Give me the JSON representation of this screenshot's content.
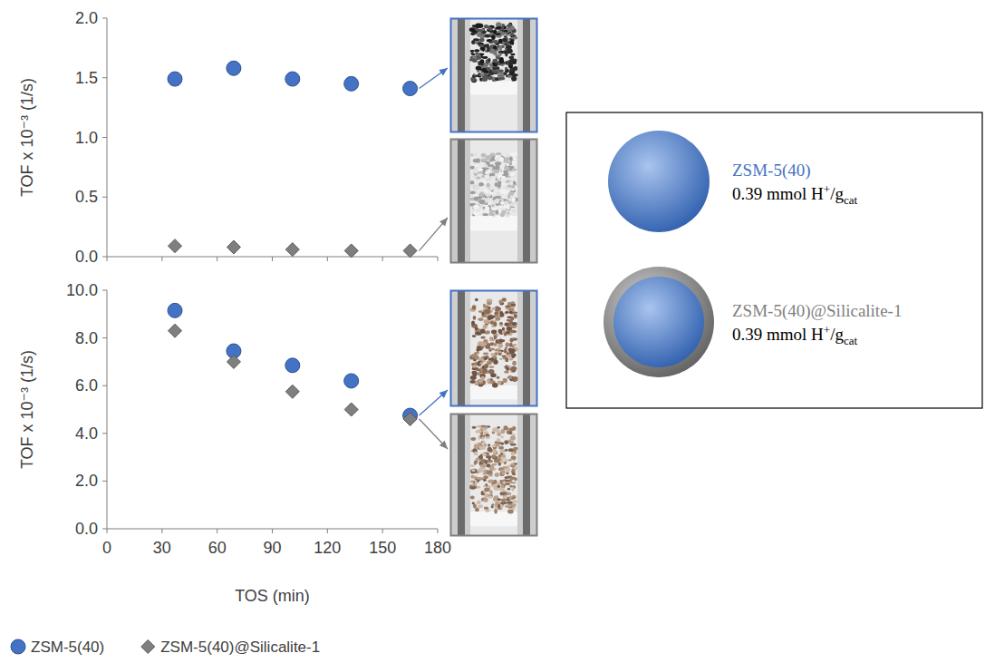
{
  "chart_data": [
    {
      "type": "scatter",
      "y_label": "TOF x 10⁻³ (1/s)",
      "x": [
        37,
        69,
        101,
        133,
        165
      ],
      "series": [
        {
          "name": "ZSM-5(40)",
          "color": "#4472c4",
          "marker": "circle",
          "values": [
            1.49,
            1.58,
            1.49,
            1.45,
            1.41
          ]
        },
        {
          "name": "ZSM-5(40)@Silicalite-1",
          "color": "#7f7f7f",
          "marker": "diamond",
          "values": [
            0.09,
            0.08,
            0.06,
            0.05,
            0.05
          ]
        }
      ],
      "xlim": [
        0,
        180
      ],
      "xticks": [
        0,
        30,
        60,
        90,
        120,
        150,
        180
      ],
      "ylim": [
        0,
        2
      ],
      "yticks": [
        {
          "value": 0,
          "label": "0.0"
        },
        {
          "value": 0.5,
          "label": "0.5"
        },
        {
          "value": 1,
          "label": "1.0"
        },
        {
          "value": 1.5,
          "label": "1.5"
        },
        {
          "value": 2,
          "label": "2.0"
        }
      ],
      "tick_labels": "y",
      "grid": false
    },
    {
      "type": "scatter",
      "y_label": "TOF x 10⁻³ (1/s)",
      "x_label": "TOS (min)",
      "x": [
        37,
        69,
        101,
        133,
        165
      ],
      "series": [
        {
          "name": "ZSM-5(40)",
          "color": "#4472c4",
          "marker": "circle",
          "values": [
            9.15,
            7.45,
            6.85,
            6.2,
            4.75
          ]
        },
        {
          "name": "ZSM-5(40)@Silicalite-1",
          "color": "#7f7f7f",
          "marker": "diamond",
          "values": [
            8.3,
            7.0,
            5.75,
            5.0,
            4.6
          ]
        }
      ],
      "xlim": [
        0,
        180
      ],
      "xticks": [
        0,
        30,
        60,
        90,
        120,
        150,
        180
      ],
      "ylim": [
        0,
        10
      ],
      "yticks": [
        {
          "value": 0,
          "label": "0.0"
        },
        {
          "value": 2,
          "label": "2.0"
        },
        {
          "value": 4,
          "label": "4.0"
        },
        {
          "value": 6,
          "label": "6.0"
        },
        {
          "value": 8,
          "label": "8.0"
        },
        {
          "value": 10,
          "label": "10.0"
        }
      ],
      "legend": "bottom",
      "grid": false
    }
  ],
  "schematic": {
    "items": [
      {
        "name": "ZSM-5(40)",
        "color": "#4472c4",
        "acid_text": "0.39 mmol H",
        "acid_sup": "+",
        "acid_mid": "/g",
        "acid_sub": "cat"
      },
      {
        "name": "ZSM-5(40)@Silicalite-1",
        "color": "#7f7f7f",
        "acid_text": "0.39 mmol H",
        "acid_sup": "+",
        "acid_mid": "/g",
        "acid_sub": "cat"
      }
    ]
  }
}
